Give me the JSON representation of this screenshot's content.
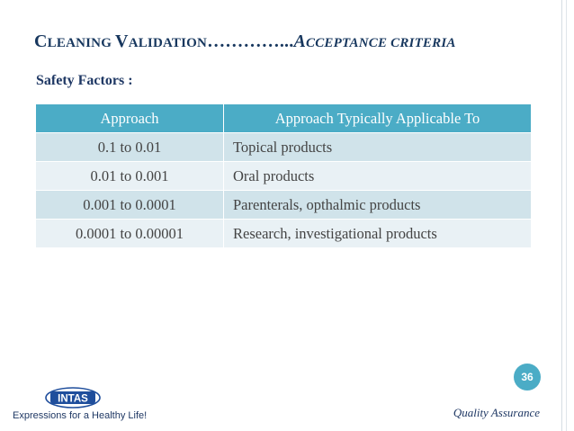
{
  "title": {
    "part1_big": "C",
    "part1_small": "LEANING ",
    "part2_big": "V",
    "part2_small": "ALIDATION",
    "dots": "…………...",
    "part3_big": "A",
    "part3_small": "CCEPTANCE CRITERIA"
  },
  "subtitle": "Safety Factors :",
  "table": {
    "headers": [
      "Approach",
      "Approach Typically Applicable To"
    ],
    "rows": [
      [
        "0.1 to 0.01",
        "Topical products"
      ],
      [
        "0.01 to 0.001",
        "Oral products"
      ],
      [
        "0.001 to 0.0001",
        "Parenterals, opthalmic products"
      ],
      [
        "0.0001 to 0.00001",
        "Research, investigational products"
      ]
    ]
  },
  "page_number": "36",
  "footer": "Quality Assurance",
  "logo_text": "INTAS",
  "tagline": "Expressions for a Healthy Life!",
  "colors": {
    "title": "#17375e",
    "header_bg": "#4bacc6",
    "row_odd": "#d0e3ea",
    "row_even": "#e9f1f5",
    "logo_blue": "#1f4e9c"
  }
}
